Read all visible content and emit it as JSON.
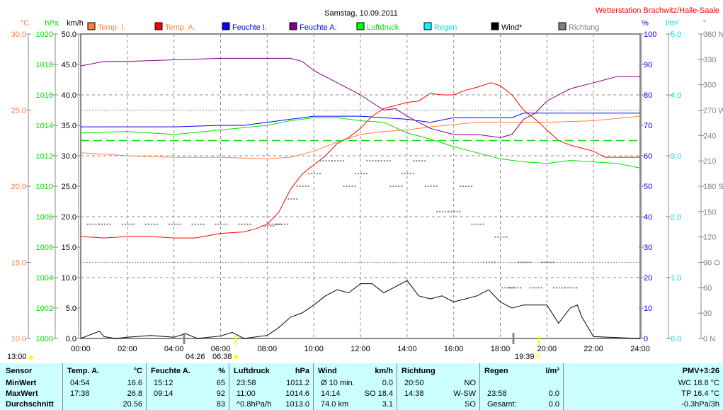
{
  "title": "Samstag, 10.09.2011",
  "station": "Wetterstation Brachwitz/Halle-Saale",
  "axes": {
    "temp": {
      "unit": "°C",
      "ticks": [
        "30.0",
        "25.0",
        "20.0",
        "15.0",
        "10.0"
      ],
      "range": [
        10,
        30
      ],
      "color": "#ff8040"
    },
    "pressure": {
      "unit": "hPa",
      "ticks": [
        "1020",
        "1018",
        "1016",
        "1014",
        "1012",
        "1010",
        "1008",
        "1006",
        "1004",
        "1002",
        "1000"
      ],
      "range": [
        1000,
        1020
      ],
      "color": "#00e000"
    },
    "wind": {
      "unit": "km/h",
      "ticks": [
        "50.0",
        "45.0",
        "40.0",
        "35.0",
        "30.0",
        "25.0",
        "20.0",
        "15.0",
        "10.0",
        "5.0",
        "0.0"
      ],
      "range": [
        0,
        50
      ],
      "color": "#000000"
    },
    "humidity": {
      "unit": "%",
      "ticks": [
        "100",
        "90",
        "80",
        "70",
        "60",
        "50",
        "40",
        "30",
        "20",
        "10",
        "0"
      ],
      "range": [
        0,
        100
      ],
      "color": "#0000ff"
    },
    "rain": {
      "unit": "l/m²",
      "ticks": [
        "5.0",
        "4.0",
        "3.0",
        "2.0",
        "1.0",
        "0.0"
      ],
      "range": [
        0,
        5
      ],
      "color": "#00e0e0"
    },
    "direction": {
      "unit": "°",
      "ticks": [
        "360 N",
        "330",
        "300",
        "270 W",
        "240",
        "210",
        "180 S",
        "150",
        "120",
        "90 O",
        "60",
        "30",
        "0   N"
      ],
      "range": [
        0,
        360
      ],
      "color": "#808080"
    },
    "time": {
      "ticks": [
        "00:00",
        "02:00",
        "04:00",
        "06:00",
        "08:00",
        "10:00",
        "12:00",
        "14:00",
        "16:00",
        "18:00",
        "20:00",
        "22:00",
        "24:00"
      ],
      "range": [
        0,
        24
      ]
    }
  },
  "legend": [
    {
      "label": "Temp. I.",
      "color": "#ff8040",
      "text_color": "#ff8040"
    },
    {
      "label": "Temp. A.",
      "color": "#ff0000",
      "text_color": "#ff8040"
    },
    {
      "label": "Feuchte I.",
      "color": "#0000ff",
      "text_color": "#0000ff"
    },
    {
      "label": "Feuchte A.",
      "color": "#800080",
      "text_color": "#0000ff"
    },
    {
      "label": "Luftdruck",
      "color": "#00ff00",
      "text_color": "#00e000"
    },
    {
      "label": "Regen",
      "color": "#00ffff",
      "text_color": "#00e0e0"
    },
    {
      "label": "Wind*",
      "color": "#000000",
      "text_color": "#000000"
    },
    {
      "label": "Richtung",
      "color": "#808080",
      "text_color": "#808080"
    }
  ],
  "sun": {
    "moon_set": "13:00",
    "sunrise": "04:26",
    "sunrise2": "06:38",
    "sunset": "19:39"
  },
  "chart_data": {
    "type": "line",
    "title": "Samstag, 10.09.2011",
    "x_unit": "hour",
    "series": [
      {
        "name": "Temp. I.",
        "axis": "temp",
        "x": [
          0,
          2,
          4,
          6,
          8,
          9,
          10,
          11,
          12,
          13,
          14,
          15,
          17,
          20,
          22,
          24
        ],
        "y": [
          22.2,
          22.0,
          21.9,
          21.9,
          21.8,
          21.9,
          22.3,
          22.9,
          23.4,
          23.6,
          23.7,
          23.9,
          24.2,
          24.2,
          24.3,
          24.6
        ]
      },
      {
        "name": "Temp. A.",
        "axis": "temp",
        "x": [
          0,
          1,
          2,
          3,
          4,
          4.9,
          6,
          7,
          7.5,
          8,
          8.5,
          9,
          9.5,
          10,
          10.5,
          11,
          11.5,
          12,
          12.5,
          13,
          13.5,
          14,
          14.5,
          15,
          15.5,
          16,
          16.5,
          17,
          17.6,
          18,
          18.5,
          19,
          19.5,
          20,
          20.5,
          21,
          21.5,
          22,
          22.5,
          23,
          24
        ],
        "y": [
          16.7,
          16.6,
          16.7,
          16.7,
          16.6,
          16.6,
          16.9,
          17.0,
          17.2,
          17.5,
          18.3,
          19.8,
          20.8,
          21.4,
          22.0,
          22.8,
          23.2,
          23.8,
          24.6,
          25.1,
          25.3,
          25.5,
          25.6,
          26.1,
          26.0,
          26.0,
          26.3,
          26.5,
          26.8,
          26.6,
          26.0,
          25.0,
          24.4,
          23.7,
          23.0,
          22.7,
          22.5,
          22.3,
          21.9,
          21.9,
          21.9
        ]
      },
      {
        "name": "Feuchte I.",
        "axis": "humidity",
        "x": [
          0,
          2,
          4,
          6,
          7,
          8,
          9,
          10,
          12,
          14,
          15,
          16,
          18,
          18.5,
          19,
          24
        ],
        "y": [
          69.5,
          69.5,
          69.5,
          70,
          70,
          71,
          72,
          73,
          73,
          72,
          71,
          72.5,
          72.5,
          72.5,
          74,
          74
        ]
      },
      {
        "name": "Feuchte A.",
        "axis": "humidity",
        "x": [
          0,
          1,
          2,
          4,
          6,
          8,
          9,
          9.5,
          10,
          11,
          12,
          13,
          13.5,
          14,
          14.5,
          15,
          16,
          17,
          18,
          18.5,
          19,
          19.5,
          20,
          21,
          22,
          22.5,
          23,
          24
        ],
        "y": [
          89.5,
          91,
          91,
          91.5,
          92,
          92,
          92,
          91,
          88,
          84,
          80,
          75,
          75.5,
          73,
          71,
          69,
          67,
          67,
          66,
          67,
          72,
          74,
          78,
          82,
          84,
          85,
          86,
          86
        ]
      },
      {
        "name": "Luftdruck",
        "axis": "pressure",
        "x": [
          0,
          2,
          4,
          6,
          8,
          9,
          10,
          11,
          12,
          13,
          14,
          15,
          16,
          17,
          18,
          19,
          20,
          21,
          22,
          23,
          24
        ],
        "y": [
          1013.5,
          1013.6,
          1013.4,
          1013.7,
          1014.0,
          1014.3,
          1014.5,
          1014.5,
          1014.3,
          1014.2,
          1013.5,
          1013.1,
          1012.6,
          1012.2,
          1011.8,
          1011.6,
          1011.5,
          1011.7,
          1011.6,
          1011.5,
          1011.2
        ]
      },
      {
        "name": "Luftdruck Durchschnitt",
        "axis": "pressure",
        "x": [
          0,
          24
        ],
        "y": [
          1013.0,
          1013.0
        ],
        "style": "dashed"
      },
      {
        "name": "Wind*",
        "axis": "wind",
        "x": [
          0,
          0.8,
          1,
          1.5,
          2,
          3,
          4,
          4.5,
          5,
          6,
          6.5,
          7,
          8,
          8.5,
          9,
          9.5,
          10,
          10.5,
          11,
          11.5,
          12,
          12.5,
          13,
          13.5,
          14,
          14.5,
          15,
          15.5,
          16,
          16.5,
          17,
          17.5,
          18,
          18.5,
          19,
          19.5,
          20,
          20.5,
          21,
          21.3,
          21.5,
          22,
          24
        ],
        "y": [
          0,
          1.2,
          0.3,
          0,
          0.2,
          0.5,
          0.2,
          0.8,
          0,
          0.4,
          1.0,
          0,
          0.5,
          1.8,
          3.5,
          4.2,
          5.5,
          7.0,
          8.0,
          7.5,
          9.0,
          9.0,
          7.5,
          8.5,
          9.5,
          7.0,
          6.5,
          7.0,
          6.0,
          6.5,
          7.0,
          8.0,
          6.0,
          5.0,
          5.5,
          5.5,
          5.5,
          2.5,
          5.0,
          5.5,
          3.5,
          0.3,
          0
        ]
      },
      {
        "name": "Richtung",
        "axis": "direction",
        "type": "scatter",
        "x": [
          0.5,
          1,
          2,
          3,
          4,
          5,
          6,
          7,
          8,
          8.3,
          8.6,
          9,
          9.5,
          10,
          10.5,
          11,
          11.5,
          12,
          12.5,
          13,
          13.5,
          14,
          14.5,
          15,
          15.5,
          16,
          16.5,
          17,
          17.5,
          18,
          18.3,
          18.6,
          19,
          19.5,
          20,
          20.5,
          21
        ],
        "y": [
          135,
          135,
          135,
          135,
          135,
          135,
          135,
          135,
          133,
          135,
          135,
          165,
          180,
          195,
          210,
          210,
          180,
          195,
          210,
          210,
          180,
          195,
          210,
          180,
          150,
          150,
          180,
          135,
          90,
          120,
          60,
          60,
          90,
          60,
          90,
          60,
          60
        ]
      }
    ]
  },
  "table": {
    "sensor": {
      "header": "Sensor",
      "rows": [
        "MinWert",
        "MaxWert",
        "Durchschnitt"
      ]
    },
    "temp": {
      "header": "Temp. A.",
      "unit": "°C",
      "rows": [
        [
          "04:54",
          "16.6"
        ],
        [
          "17:38",
          "26.8"
        ],
        [
          "",
          "20.56"
        ]
      ]
    },
    "hum": {
      "header": "Feuchte A.",
      "unit": "%",
      "rows": [
        [
          "15:12",
          "65"
        ],
        [
          "09:14",
          "92"
        ],
        [
          "",
          "83"
        ]
      ]
    },
    "press": {
      "header": "Luftdruck",
      "unit": "hPa",
      "rows": [
        [
          "23:58",
          "1011.2"
        ],
        [
          "11:00",
          "1014.6"
        ],
        [
          "^0.8hPa/h",
          "1013.0"
        ]
      ]
    },
    "wind": {
      "header": "Wind",
      "unit": "km/h",
      "rows": [
        [
          "Ø 10 min.",
          "0.0"
        ],
        [
          "14:14",
          "SO 18.4"
        ],
        [
          "74.0 km",
          "3.1"
        ]
      ]
    },
    "dir": {
      "header": "Richtung",
      "rows": [
        [
          "20:50",
          "NO"
        ],
        [
          "14:38",
          "W-SW"
        ],
        [
          "",
          "SO"
        ]
      ]
    },
    "rain": {
      "header": "Regen",
      "unit": "l/m²",
      "rows": [
        [
          "",
          ""
        ],
        [
          "23:58",
          "0.0"
        ],
        [
          "Gesamt:",
          "0.0"
        ]
      ]
    },
    "pmv": {
      "header": "PMV+3:26",
      "rows": [
        "WC 18.8 °C",
        "TP 16.4 °C",
        "-0.3hPa/3h"
      ]
    }
  }
}
